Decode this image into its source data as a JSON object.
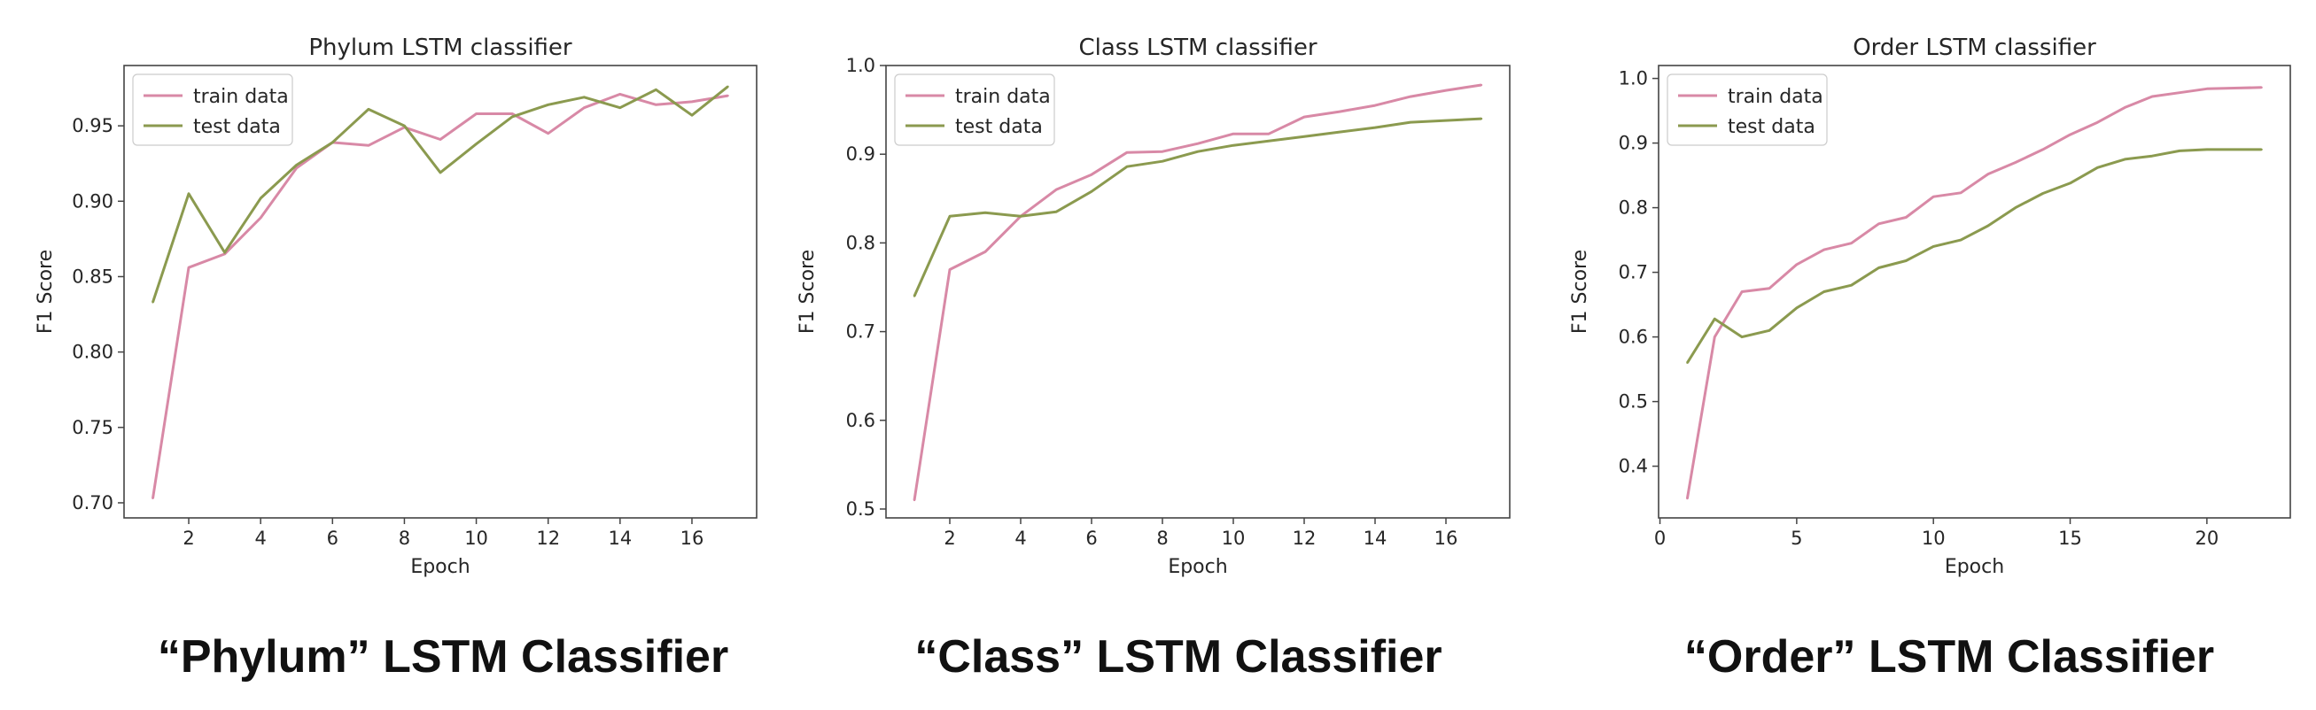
{
  "colors": {
    "train": "#d889a6",
    "test": "#8b9a4f",
    "axis": "#444444"
  },
  "charts": [
    {
      "caption": "“Phylum” LSTM Classifier"
    },
    {
      "caption": "“Class” LSTM Classifier"
    },
    {
      "caption": "“Order” LSTM Classifier"
    }
  ],
  "chart_data": [
    {
      "type": "line",
      "title": "Phylum LSTM classifier",
      "xlabel": "Epoch",
      "ylabel": "F1 Score",
      "xlim": [
        0.2,
        17.8
      ],
      "ylim": [
        0.69,
        0.99
      ],
      "xticks": [
        2,
        4,
        6,
        8,
        10,
        12,
        14,
        16
      ],
      "xtick_labels": [
        "2",
        "4",
        "6",
        "8",
        "10",
        "12",
        "14",
        "16"
      ],
      "yticks": [
        0.7,
        0.75,
        0.8,
        0.85,
        0.9,
        0.95
      ],
      "ytick_labels": [
        "0.70",
        "0.75",
        "0.80",
        "0.85",
        "0.90",
        "0.95"
      ],
      "legend": "top-left",
      "grid": false,
      "x": [
        1,
        2,
        3,
        4,
        5,
        6,
        7,
        8,
        9,
        10,
        11,
        12,
        13,
        14,
        15,
        16,
        17
      ],
      "series": [
        {
          "name": "train data",
          "values": [
            0.703,
            0.856,
            0.865,
            0.889,
            0.922,
            0.939,
            0.937,
            0.949,
            0.941,
            0.958,
            0.958,
            0.945,
            0.962,
            0.971,
            0.964,
            0.966,
            0.97
          ]
        },
        {
          "name": "test data",
          "values": [
            0.833,
            0.905,
            0.866,
            0.902,
            0.924,
            0.939,
            0.961,
            0.95,
            0.919,
            0.938,
            0.956,
            0.964,
            0.969,
            0.962,
            0.974,
            0.957,
            0.976
          ]
        }
      ]
    },
    {
      "type": "line",
      "title": "Class LSTM classifier",
      "xlabel": "Epoch",
      "ylabel": "F1 Score",
      "xlim": [
        0.2,
        17.8
      ],
      "ylim": [
        0.49,
        1.0
      ],
      "xticks": [
        2,
        4,
        6,
        8,
        10,
        12,
        14,
        16
      ],
      "xtick_labels": [
        "2",
        "4",
        "6",
        "8",
        "10",
        "12",
        "14",
        "16"
      ],
      "yticks": [
        0.5,
        0.6,
        0.7,
        0.8,
        0.9,
        1.0
      ],
      "ytick_labels": [
        "0.5",
        "0.6",
        "0.7",
        "0.8",
        "0.9",
        "1.0"
      ],
      "legend": "top-left",
      "grid": false,
      "x": [
        1,
        2,
        3,
        4,
        5,
        6,
        7,
        8,
        9,
        10,
        11,
        12,
        13,
        14,
        15,
        16,
        17
      ],
      "series": [
        {
          "name": "train data",
          "values": [
            0.51,
            0.77,
            0.79,
            0.83,
            0.86,
            0.877,
            0.902,
            0.903,
            0.912,
            0.923,
            0.923,
            0.942,
            0.948,
            0.955,
            0.965,
            0.972,
            0.978
          ]
        },
        {
          "name": "test data",
          "values": [
            0.74,
            0.83,
            0.834,
            0.83,
            0.835,
            0.858,
            0.886,
            0.892,
            0.903,
            0.91,
            0.915,
            0.92,
            0.925,
            0.93,
            0.936,
            0.938,
            0.94
          ]
        }
      ]
    },
    {
      "type": "line",
      "title": "Order LSTM classifier",
      "xlabel": "Epoch",
      "ylabel": "F1 Score",
      "xlim": [
        -0.05,
        23.05
      ],
      "ylim": [
        0.32,
        1.02
      ],
      "xticks": [
        0,
        5,
        10,
        15,
        20
      ],
      "xtick_labels": [
        "0",
        "5",
        "10",
        "15",
        "20"
      ],
      "yticks": [
        0.4,
        0.5,
        0.6,
        0.7,
        0.8,
        0.9,
        1.0
      ],
      "ytick_labels": [
        "0.4",
        "0.5",
        "0.6",
        "0.7",
        "0.8",
        "0.9",
        "1.0"
      ],
      "legend": "top-left",
      "grid": false,
      "x": [
        1,
        2,
        3,
        4,
        5,
        6,
        7,
        8,
        9,
        10,
        11,
        12,
        13,
        14,
        15,
        16,
        17,
        18,
        19,
        20,
        21,
        22
      ],
      "series": [
        {
          "name": "train data",
          "values": [
            0.35,
            0.6,
            0.67,
            0.675,
            0.712,
            0.735,
            0.745,
            0.775,
            0.785,
            0.817,
            0.823,
            0.852,
            0.87,
            0.89,
            0.913,
            0.932,
            0.955,
            0.972,
            0.978,
            0.984,
            0.985,
            0.986
          ]
        },
        {
          "name": "test data",
          "values": [
            0.56,
            0.628,
            0.6,
            0.61,
            0.645,
            0.67,
            0.68,
            0.707,
            0.718,
            0.74,
            0.75,
            0.772,
            0.8,
            0.822,
            0.838,
            0.862,
            0.875,
            0.88,
            0.888,
            0.89,
            0.89,
            0.89
          ]
        }
      ]
    }
  ]
}
